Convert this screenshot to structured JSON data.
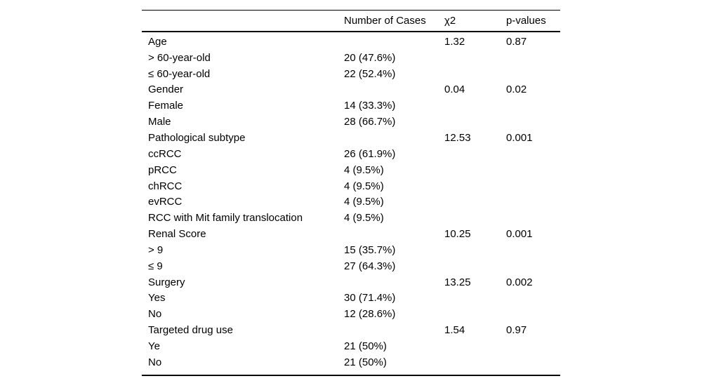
{
  "table": {
    "columns": [
      "",
      "Number of Cases",
      "χ2",
      "p-values"
    ],
    "rows": [
      [
        "Age",
        "",
        "1.32",
        "0.87"
      ],
      [
        "> 60-year-old",
        "20 (47.6%)",
        "",
        ""
      ],
      [
        "≤ 60-year-old",
        "22 (52.4%)",
        "",
        ""
      ],
      [
        "Gender",
        "",
        "0.04",
        "0.02"
      ],
      [
        "Female",
        "14 (33.3%)",
        "",
        ""
      ],
      [
        "Male",
        "28 (66.7%)",
        "",
        ""
      ],
      [
        "Pathological subtype",
        "",
        "12.53",
        "0.001"
      ],
      [
        "ccRCC",
        "26 (61.9%)",
        "",
        ""
      ],
      [
        "pRCC",
        "4 (9.5%)",
        "",
        ""
      ],
      [
        "chRCC",
        "4 (9.5%)",
        "",
        ""
      ],
      [
        "evRCC",
        "4 (9.5%)",
        "",
        ""
      ],
      [
        "RCC with Mit family translocation",
        "4 (9.5%)",
        "",
        ""
      ],
      [
        "Renal Score",
        "",
        "10.25",
        "0.001"
      ],
      [
        "> 9",
        "15 (35.7%)",
        "",
        ""
      ],
      [
        "≤ 9",
        "27 (64.3%)",
        "",
        ""
      ],
      [
        "Surgery",
        "",
        "13.25",
        "0.002"
      ],
      [
        "Yes",
        "30 (71.4%)",
        "",
        ""
      ],
      [
        "No",
        "12 (28.6%)",
        "",
        ""
      ],
      [
        "Targeted drug use",
        "",
        "1.54",
        "0.97"
      ],
      [
        "Ye",
        "21 (50%)",
        "",
        ""
      ],
      [
        "No",
        "21 (50%)",
        "",
        ""
      ]
    ],
    "colors": {
      "text": "#000000",
      "background": "#ffffff",
      "rule": "#000000"
    }
  }
}
